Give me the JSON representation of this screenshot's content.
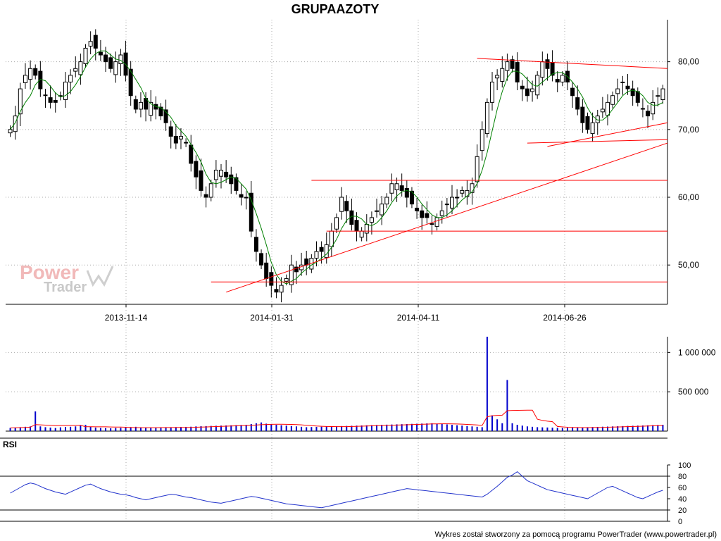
{
  "title": "GRUPAAZOTY",
  "footer": "Wykres został stworzony za pomocą programu PowerTrader (www.powertrader.pl)",
  "watermark": {
    "power": "Power",
    "trader": "Trader"
  },
  "rsi_label": "RSI",
  "colors": {
    "candle_up": "#ffffff",
    "candle_down": "#000000",
    "ma": "#008000",
    "trendline": "#ff0000",
    "volume": "#0000cc",
    "volume_ma": "#ff0000",
    "rsi": "#2233cc"
  },
  "chart_data": [
    {
      "type": "candlestick",
      "title": "GRUPAAZOTY",
      "x_ticks": [
        "2013-11-14",
        "2014-01-31",
        "2014-04-11",
        "2014-06-26"
      ],
      "y_ticks": [
        "80,00",
        "70,00",
        "60,00",
        "50,00"
      ],
      "ylim": [
        44.2,
        86.2
      ],
      "grid": true,
      "close_by_session": [
        70,
        72,
        76,
        78,
        79,
        78,
        76,
        75,
        74,
        74,
        75,
        77,
        78,
        79,
        80,
        82,
        83,
        82,
        81,
        80,
        79,
        80,
        81,
        78,
        75,
        73,
        74,
        73,
        74,
        73,
        72,
        71,
        69,
        68,
        69,
        68,
        65,
        63,
        61,
        60,
        62,
        64,
        64,
        63,
        62,
        61,
        60,
        60,
        55,
        52,
        50,
        48,
        47,
        46,
        47,
        48,
        50,
        49,
        50,
        50,
        51,
        52,
        52,
        53,
        55,
        57,
        60,
        58,
        56,
        55,
        55,
        56,
        57,
        58,
        59,
        60,
        62,
        62,
        61,
        60,
        59,
        58,
        57,
        57,
        56,
        57,
        58,
        59,
        60,
        60,
        61,
        61,
        62,
        66,
        70,
        74,
        77,
        78,
        79,
        80,
        79,
        77,
        76,
        75,
        76,
        78,
        80,
        79,
        78,
        77,
        78,
        77,
        75,
        73,
        71,
        70,
        71,
        72,
        73,
        74,
        75,
        76,
        77,
        76,
        75,
        74,
        73,
        72,
        74,
        75,
        76
      ],
      "indicator": {
        "name": "moving average",
        "type": "line"
      },
      "trendlines": "red support/resistance lines"
    },
    {
      "type": "bar",
      "title": "volume",
      "y_ticks": [
        "1 000 000",
        "500 000"
      ],
      "ylim": [
        0,
        1200000
      ],
      "grid": true,
      "values_by_session": [
        40000,
        45000,
        50000,
        55000,
        60000,
        250000,
        60000,
        50000,
        45000,
        40000,
        48000,
        52000,
        55000,
        60000,
        70000,
        80000,
        55000,
        45000,
        40000,
        38000,
        36000,
        40000,
        42000,
        44000,
        50000,
        55000,
        48000,
        45000,
        43000,
        40000,
        42000,
        44000,
        48000,
        50000,
        52000,
        54000,
        56000,
        60000,
        62000,
        64000,
        66000,
        68000,
        70000,
        72000,
        74000,
        76000,
        78000,
        80000,
        90000,
        100000,
        110000,
        95000,
        85000,
        80000,
        75000,
        70000,
        65000,
        60000,
        55000,
        50000,
        52000,
        54000,
        56000,
        58000,
        60000,
        62000,
        64000,
        66000,
        68000,
        70000,
        72000,
        74000,
        76000,
        78000,
        80000,
        82000,
        84000,
        86000,
        88000,
        90000,
        92000,
        94000,
        96000,
        98000,
        100000,
        95000,
        90000,
        85000,
        80000,
        75000,
        70000,
        65000,
        60000,
        55000,
        50000,
        1200000,
        200000,
        150000,
        100000,
        650000,
        100000,
        80000,
        70000,
        60000,
        55000,
        50000,
        48000,
        46000,
        44000,
        42000,
        40000,
        42000,
        44000,
        46000,
        48000,
        50000,
        52000,
        54000,
        56000,
        58000,
        60000,
        62000,
        64000,
        66000,
        68000,
        70000,
        72000,
        74000,
        76000,
        78000,
        80000
      ],
      "moving_average": "red line"
    },
    {
      "type": "line",
      "title": "RSI",
      "y_ticks": [
        "100",
        "80",
        "60",
        "40",
        "20",
        "0"
      ],
      "ylim": [
        0,
        100
      ],
      "reference_levels": [
        80,
        20
      ],
      "values_by_session": [
        50,
        55,
        60,
        65,
        68,
        66,
        62,
        58,
        55,
        52,
        50,
        48,
        52,
        56,
        60,
        64,
        66,
        62,
        58,
        55,
        52,
        50,
        48,
        47,
        45,
        42,
        40,
        38,
        40,
        42,
        44,
        46,
        48,
        47,
        45,
        43,
        42,
        40,
        38,
        36,
        34,
        33,
        32,
        34,
        36,
        38,
        40,
        42,
        44,
        43,
        41,
        39,
        37,
        35,
        33,
        31,
        30,
        29,
        28,
        27,
        26,
        25,
        24,
        26,
        28,
        30,
        32,
        34,
        36,
        38,
        40,
        42,
        44,
        46,
        48,
        50,
        52,
        54,
        56,
        58,
        57,
        56,
        55,
        54,
        53,
        52,
        51,
        50,
        49,
        48,
        47,
        46,
        45,
        44,
        43,
        48,
        55,
        62,
        70,
        78,
        82,
        88,
        80,
        72,
        68,
        64,
        60,
        56,
        54,
        52,
        50,
        48,
        46,
        44,
        42,
        40,
        45,
        50,
        55,
        60,
        62,
        58,
        54,
        50,
        46,
        42,
        40,
        44,
        48,
        52,
        55
      ]
    }
  ]
}
